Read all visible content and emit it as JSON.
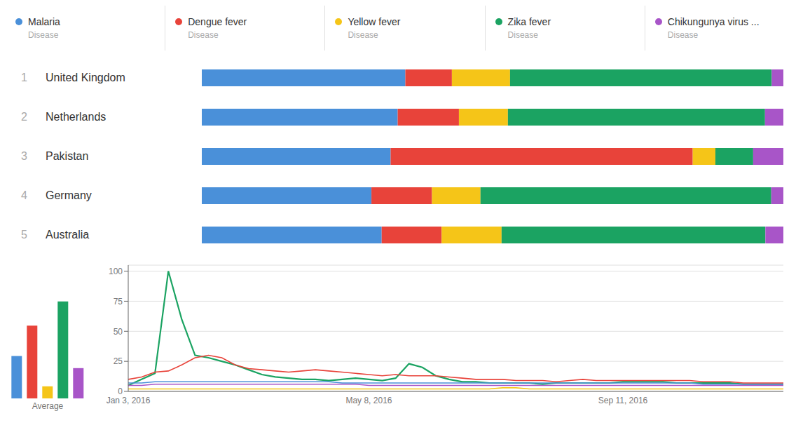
{
  "chart_data": [
    {
      "type": "bar",
      "categories": [
        "Malaria",
        "Dengue fever",
        "Yellow fever",
        "Zika fever",
        "Chikungunya virus ..."
      ],
      "values": [
        7,
        12,
        2,
        16,
        5
      ],
      "colors": [
        "#4a90d9",
        "#e8433a",
        "#f5c518",
        "#1ba362",
        "#a855c8"
      ],
      "xlabel": "Average",
      "subtitle": "Disease",
      "ylim": [
        0,
        22
      ],
      "tick_labels": false,
      "legend": "top"
    },
    {
      "type": "bar",
      "orientation": "horizontal",
      "stacked": true,
      "categories": [
        "United Kingdom",
        "Netherlands",
        "Pakistan",
        "Germany",
        "Australia"
      ],
      "ranks": [
        1,
        2,
        3,
        4,
        5
      ],
      "series": [
        {
          "name": "Malaria",
          "color": "#4a90d9",
          "values": [
            35,
            32,
            25,
            28,
            30
          ]
        },
        {
          "name": "Dengue fever",
          "color": "#e8433a",
          "values": [
            8,
            10,
            40,
            10,
            10
          ]
        },
        {
          "name": "Yellow fever",
          "color": "#f5c518",
          "values": [
            10,
            8,
            3,
            8,
            10
          ]
        },
        {
          "name": "Zika fever",
          "color": "#1ba362",
          "values": [
            45,
            42,
            5,
            48,
            44
          ]
        },
        {
          "name": "Chikungunya virus ...",
          "color": "#a855c8",
          "values": [
            2,
            3,
            4,
            2,
            3
          ]
        }
      ],
      "tick_labels": "y"
    },
    {
      "type": "line",
      "categories": [
        "Jan 3, 2016",
        null,
        null,
        null,
        null,
        null,
        null,
        null,
        null,
        null,
        null,
        null,
        null,
        null,
        null,
        null,
        null,
        null,
        "May 8, 2016",
        null,
        null,
        null,
        null,
        null,
        null,
        null,
        null,
        null,
        null,
        null,
        null,
        null,
        null,
        null,
        null,
        null,
        null,
        "Sep 11, 2016",
        null,
        null,
        null,
        null,
        null,
        null,
        null,
        null,
        null,
        null,
        null,
        null
      ],
      "series": [
        {
          "name": "Zika fever",
          "color": "#1ba362",
          "values": [
            5,
            10,
            15,
            100,
            60,
            30,
            28,
            25,
            22,
            18,
            14,
            12,
            11,
            10,
            10,
            9,
            10,
            11,
            10,
            9,
            11,
            23,
            20,
            13,
            10,
            8,
            8,
            7,
            7,
            7,
            7,
            6,
            7,
            7,
            7,
            7,
            7,
            8,
            8,
            8,
            8,
            7,
            7,
            7,
            7,
            7,
            6,
            6,
            6,
            6
          ]
        },
        {
          "name": "Dengue fever",
          "color": "#e8433a",
          "values": [
            10,
            12,
            16,
            17,
            22,
            28,
            30,
            28,
            22,
            19,
            18,
            17,
            16,
            17,
            18,
            17,
            16,
            15,
            14,
            13,
            14,
            13,
            13,
            13,
            12,
            11,
            10,
            10,
            10,
            9,
            9,
            9,
            8,
            9,
            10,
            9,
            9,
            9,
            9,
            9,
            9,
            9,
            9,
            8,
            8,
            8,
            7,
            7,
            7,
            7
          ]
        },
        {
          "name": "Malaria",
          "color": "#4a90d9",
          "values": [
            7,
            7,
            8,
            8,
            8,
            8,
            8,
            8,
            8,
            8,
            8,
            8,
            8,
            8,
            8,
            8,
            7,
            7,
            7,
            7,
            7,
            7,
            7,
            7,
            7,
            7,
            7,
            7,
            7,
            7,
            7,
            7,
            7,
            7,
            7,
            7,
            7,
            7,
            7,
            7,
            7,
            7,
            7,
            6,
            6,
            6,
            6,
            6,
            6,
            6
          ]
        },
        {
          "name": "Chikungunya virus ...",
          "color": "#a855c8",
          "values": [
            5,
            5,
            6,
            6,
            6,
            6,
            6,
            6,
            6,
            6,
            6,
            6,
            6,
            6,
            6,
            6,
            6,
            6,
            5,
            5,
            5,
            5,
            5,
            5,
            5,
            5,
            5,
            5,
            5,
            5,
            5,
            5,
            5,
            5,
            5,
            5,
            5,
            5,
            5,
            5,
            5,
            5,
            5,
            5,
            5,
            5,
            5,
            5,
            5,
            5
          ]
        },
        {
          "name": "Yellow fever",
          "color": "#f5c518",
          "values": [
            2,
            2,
            2,
            2,
            2,
            2,
            2,
            2,
            2,
            2,
            2,
            2,
            2,
            2,
            2,
            2,
            2,
            2,
            2,
            2,
            2,
            2,
            2,
            2,
            2,
            2,
            2,
            2,
            3,
            3,
            2,
            2,
            2,
            2,
            2,
            2,
            2,
            2,
            2,
            2,
            2,
            2,
            2,
            2,
            2,
            2,
            2,
            2,
            2,
            2
          ]
        }
      ],
      "ylim": [
        0,
        105
      ],
      "yticks": [
        0,
        25,
        50,
        75,
        100
      ],
      "grid": true
    }
  ]
}
